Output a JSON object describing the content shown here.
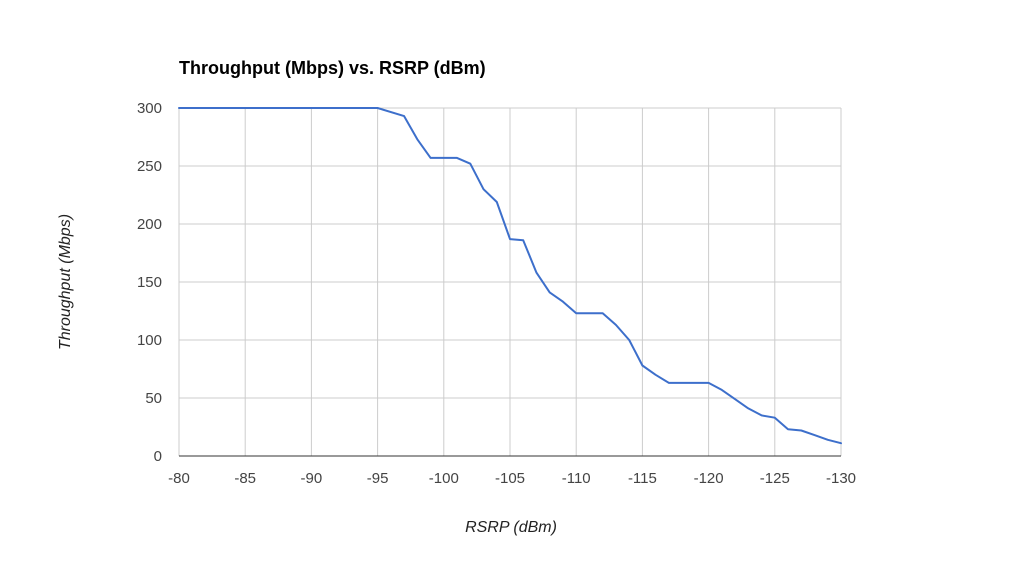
{
  "chart_data": {
    "type": "line",
    "title": "Throughput (Mbps) vs. RSRP (dBm)",
    "xlabel": "RSRP (dBm)",
    "ylabel": "Throughput (Mbps)",
    "xlim": [
      -80,
      -130
    ],
    "ylim": [
      0,
      300
    ],
    "x_reversed": true,
    "grid": true,
    "legend": "none",
    "x_ticks": [
      -80,
      -85,
      -90,
      -95,
      -100,
      -105,
      -110,
      -115,
      -120,
      -125,
      -130
    ],
    "x_tick_labels": [
      "-80",
      "-85",
      "-90",
      "-95",
      "-100",
      "-105",
      "-110",
      "-115",
      "-120",
      "-125",
      "-130"
    ],
    "y_ticks": [
      0,
      50,
      100,
      150,
      200,
      250,
      300
    ],
    "y_tick_labels": [
      "0",
      "50",
      "100",
      "150",
      "200",
      "250",
      "300"
    ],
    "series": [
      {
        "color": "#3d6fcb",
        "x": [
          -80,
          -95,
          -97,
          -98,
          -99,
          -100,
          -101,
          -102,
          -103,
          -104,
          -105,
          -106,
          -107,
          -108,
          -109,
          -110,
          -111,
          -112,
          -113,
          -114,
          -115,
          -116,
          -117,
          -118,
          -119,
          -120,
          -121,
          -122,
          -123,
          -124,
          -125,
          -126,
          -127,
          -128,
          -129,
          -130
        ],
        "y": [
          300,
          300,
          293,
          273,
          257,
          257,
          257,
          252,
          230,
          219,
          187,
          186,
          158,
          141,
          133,
          123,
          123,
          123,
          113,
          100,
          78,
          70,
          63,
          63,
          63,
          63,
          57,
          49,
          41,
          35,
          33,
          23,
          22,
          18,
          14,
          11
        ]
      }
    ]
  }
}
